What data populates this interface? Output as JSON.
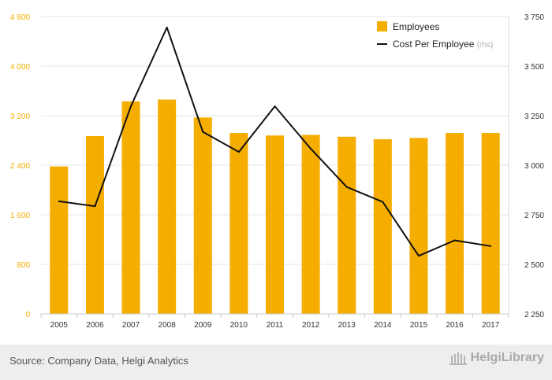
{
  "chart_data": {
    "type": "bar+line",
    "categories": [
      "2005",
      "2006",
      "2007",
      "2008",
      "2009",
      "2010",
      "2011",
      "2012",
      "2013",
      "2014",
      "2015",
      "2016",
      "2017"
    ],
    "series": [
      {
        "name": "Employees",
        "type": "bar",
        "axis": "left",
        "color": "#f5ad00",
        "values": [
          2380,
          2870,
          3430,
          3460,
          3170,
          2920,
          2880,
          2890,
          2860,
          2820,
          2840,
          2920,
          2920
        ]
      },
      {
        "name": "Cost Per Employee",
        "name_suffix": "(rhs)",
        "type": "line",
        "axis": "right",
        "color": "#111111",
        "values": [
          2818,
          2793,
          3298,
          3695,
          3168,
          3067,
          3297,
          3083,
          2890,
          2815,
          2543,
          2621,
          2592
        ]
      }
    ],
    "y_left": {
      "min": 0,
      "max": 4800,
      "ticks": [
        "0",
        "800",
        "1 600",
        "2 400",
        "3 200",
        "4 000",
        "4 800"
      ]
    },
    "y_right": {
      "min": 2250,
      "max": 3750,
      "ticks": [
        "2 250",
        "2 500",
        "2 750",
        "3 000",
        "3 250",
        "3 500",
        "3 750"
      ]
    },
    "grid": true,
    "legend_position": "top-right"
  },
  "footer": {
    "source": "Source: Company Data, Helgi Analytics",
    "brand": "HelgiLibrary"
  },
  "colors": {
    "left_axis_text": "#f5ad00",
    "right_axis_text": "#333333",
    "grid": "#e6e6e6",
    "footer_bg": "#eeeeee"
  }
}
